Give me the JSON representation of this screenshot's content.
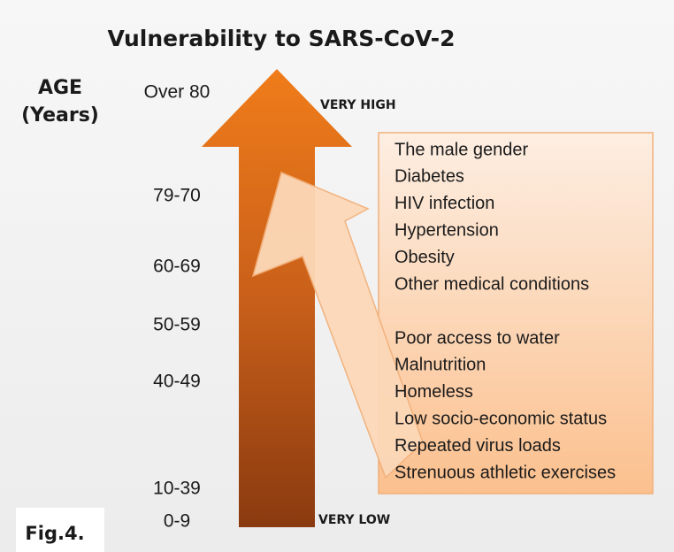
{
  "title": "Vulnerability to SARS-CoV-2",
  "axis_label": [
    "AGE",
    "(Years)"
  ],
  "age_groups": [
    "Over 80",
    "79-70",
    "60-69",
    "50-59",
    "40-49",
    "10-39",
    "0-9"
  ],
  "levels": {
    "top": "VERY HIGH",
    "bottom": "VERY LOW"
  },
  "factors": {
    "group1": [
      "The male gender",
      "Diabetes",
      "HIV infection",
      "Hypertension",
      "Obesity",
      "Other medical conditions"
    ],
    "group2": [
      "Poor access to water",
      "Malnutrition",
      "Homeless",
      "Low socio-economic status",
      "Repeated virus loads",
      "Strenuous athletic exercises"
    ]
  },
  "figure_label": "Fig.4."
}
